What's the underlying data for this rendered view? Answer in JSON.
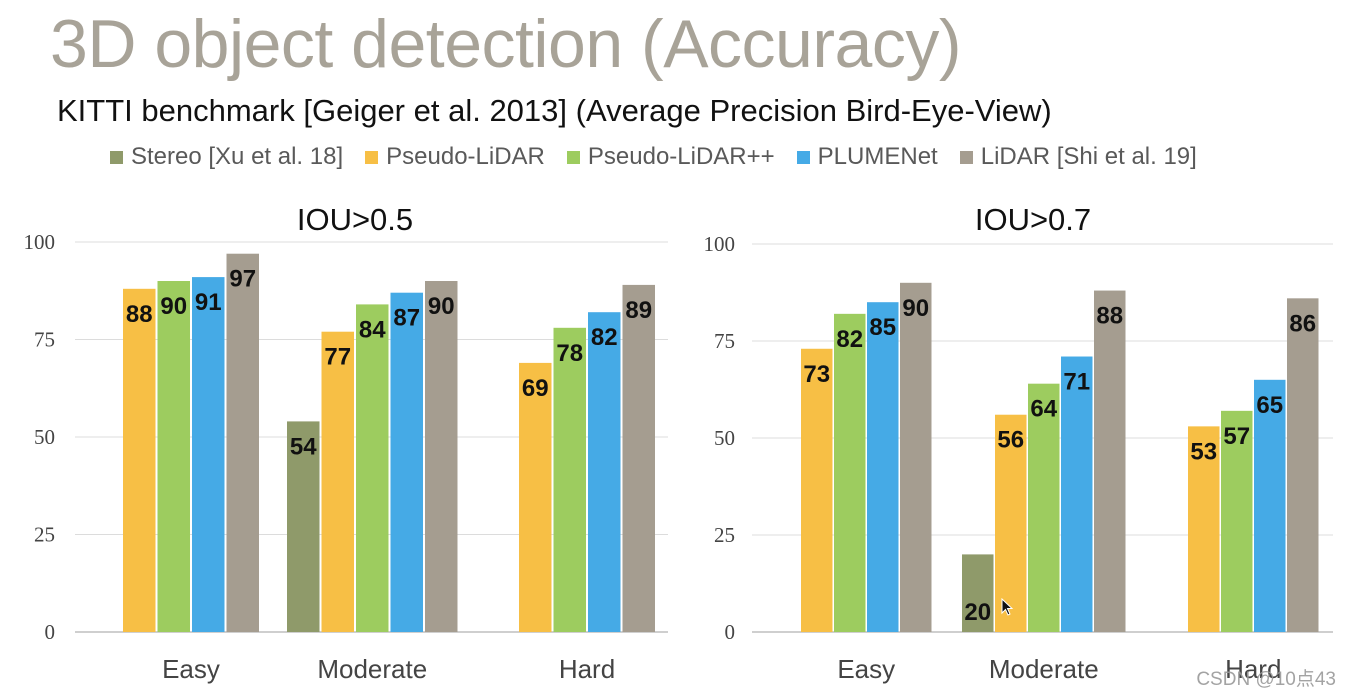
{
  "page": {
    "title": "3D object detection (Accuracy)",
    "subtitle": "KITTI benchmark [Geiger et al. 2013] (Average Precision Bird-Eye-View)",
    "watermark": "CSDN @10点43"
  },
  "legend": [
    {
      "name": "Stereo [Xu et al. 18]",
      "color": "#8f9a6a"
    },
    {
      "name": "Pseudo-LiDAR",
      "color": "#f7bf45"
    },
    {
      "name": "Pseudo-LiDAR++",
      "color": "#9dcc5f"
    },
    {
      "name": "PLUMENet",
      "color": "#45aae6"
    },
    {
      "name": "LiDAR [Shi et al. 19]",
      "color": "#a59d90"
    }
  ],
  "chart_data": [
    {
      "type": "bar",
      "title": "IOU>0.5",
      "categories": [
        "Easy",
        "Moderate",
        "Hard"
      ],
      "ylim": [
        0,
        100
      ],
      "yticks": [
        0,
        25,
        50,
        75,
        100
      ],
      "series": [
        {
          "name": "Stereo [Xu et al. 18]",
          "values": [
            null,
            54,
            null
          ]
        },
        {
          "name": "Pseudo-LiDAR",
          "values": [
            88,
            77,
            69
          ]
        },
        {
          "name": "Pseudo-LiDAR++",
          "values": [
            90,
            84,
            78
          ]
        },
        {
          "name": "PLUMENet",
          "values": [
            91,
            87,
            82
          ]
        },
        {
          "name": "LiDAR [Shi et al. 19]",
          "values": [
            97,
            90,
            89
          ]
        }
      ],
      "gridlines": true
    },
    {
      "type": "bar",
      "title": "IOU>0.7",
      "categories": [
        "Easy",
        "Moderate",
        "Hard"
      ],
      "ylim": [
        0,
        100
      ],
      "yticks": [
        0,
        25,
        50,
        75,
        100
      ],
      "series": [
        {
          "name": "Stereo [Xu et al. 18]",
          "values": [
            null,
            20,
            null
          ]
        },
        {
          "name": "Pseudo-LiDAR",
          "values": [
            73,
            56,
            53
          ]
        },
        {
          "name": "Pseudo-LiDAR++",
          "values": [
            82,
            64,
            57
          ]
        },
        {
          "name": "PLUMENet",
          "values": [
            85,
            71,
            65
          ]
        },
        {
          "name": "LiDAR [Shi et al. 19]",
          "values": [
            90,
            88,
            86
          ]
        }
      ],
      "gridlines": true
    }
  ]
}
